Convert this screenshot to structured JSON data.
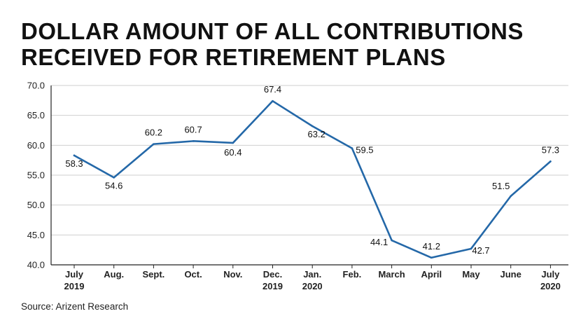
{
  "title_lines": [
    "DOLLAR AMOUNT OF ALL CONTRIBUTIONS",
    "RECEIVED FOR RETIREMENT PLANS"
  ],
  "source": "Source: Arizent Research",
  "colors": {
    "line": "#2468a8",
    "grid": "#cfcfcf",
    "axis": "#222222"
  },
  "chart_data": {
    "type": "line",
    "title": "DOLLAR AMOUNT OF ALL CONTRIBUTIONS RECEIVED FOR RETIREMENT PLANS",
    "xlabel": "",
    "ylabel": "",
    "categories": [
      [
        "July",
        "2019"
      ],
      [
        "Aug."
      ],
      [
        "Sept."
      ],
      [
        "Oct."
      ],
      [
        "Nov."
      ],
      [
        "Dec.",
        "2019"
      ],
      [
        "Jan.",
        "2020"
      ],
      [
        "Feb."
      ],
      [
        "March"
      ],
      [
        "April"
      ],
      [
        "May"
      ],
      [
        "June"
      ],
      [
        "July",
        "2020"
      ]
    ],
    "values": [
      58.3,
      54.6,
      60.2,
      60.7,
      60.4,
      67.4,
      63.2,
      59.5,
      44.1,
      41.2,
      42.7,
      51.5,
      57.3
    ],
    "data_labels": [
      "58.3",
      "54.6",
      "60.2",
      "60.7",
      "60.4",
      "67.4",
      "63.2",
      "59.5",
      "44.1",
      "41.2",
      "42.7",
      "51.5",
      "57.3"
    ],
    "ylim": [
      40,
      70
    ],
    "yticks": [
      "40.0",
      "45.0",
      "50.0",
      "55.0",
      "60.0",
      "65.0",
      "70.0"
    ],
    "grid": true
  }
}
